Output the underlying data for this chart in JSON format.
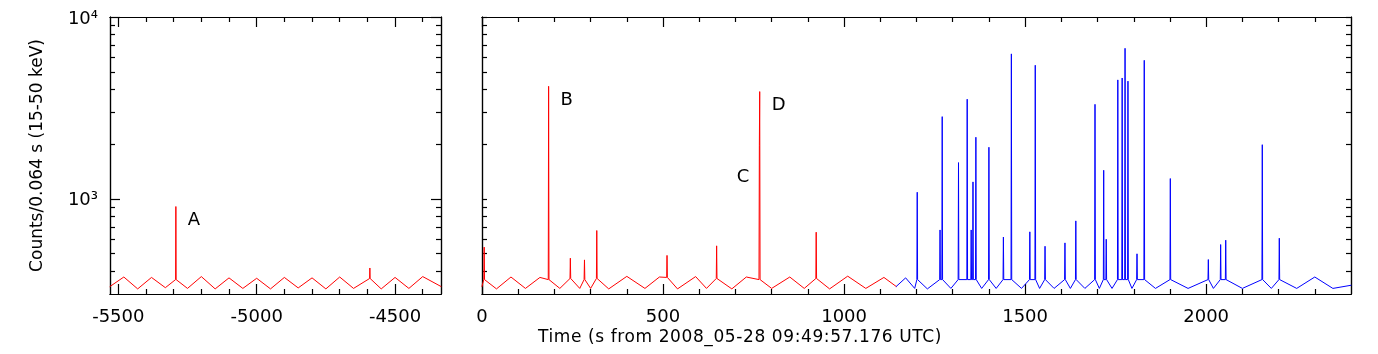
{
  "chart_data": [
    {
      "type": "line",
      "ylabel": "Counts/0.064 s (15-50 keV)",
      "log": true,
      "marker": "none",
      "xlim": [
        -5530,
        -4334
      ],
      "xticks": [
        -5500,
        {
          "value": -5400,
          "label": null
        },
        {
          "value": -5300,
          "label": null
        },
        {
          "value": -5200,
          "label": null
        },
        {
          "value": -5100,
          "label": null
        },
        -5000,
        {
          "value": -4900,
          "label": null
        },
        {
          "value": -4800,
          "label": null
        },
        {
          "value": -4700,
          "label": null
        },
        {
          "value": -4600,
          "label": null
        },
        -4500,
        {
          "value": -4400,
          "label": null
        }
      ],
      "ylim": [
        300,
        10000
      ],
      "yticks": [
        {
          "value": 400,
          "label": null
        },
        {
          "value": 500,
          "label": null
        },
        {
          "value": 600,
          "label": null
        },
        {
          "value": 700,
          "label": null
        },
        {
          "value": 800,
          "label": null
        },
        {
          "value": 900,
          "label": null
        },
        {
          "value": 1000,
          "label": "10³"
        },
        {
          "value": 2000,
          "label": null
        },
        {
          "value": 3000,
          "label": null
        },
        {
          "value": 4000,
          "label": null
        },
        {
          "value": 5000,
          "label": null
        },
        {
          "value": 6000,
          "label": null
        },
        {
          "value": 7000,
          "label": null
        },
        {
          "value": 8000,
          "label": null
        },
        {
          "value": 9000,
          "label": null
        },
        {
          "value": 10000,
          "label": "10⁴"
        }
      ],
      "annotations": [
        {
          "text": "A",
          "x": -5292,
          "y": 908
        }
      ],
      "series": [
        {
          "color": "#ff0000",
          "x": [
            -5530,
            -5480,
            -5430,
            -5380,
            -5330,
            -5293,
            -5292,
            -5291,
            -5250,
            -5200,
            -5150,
            -5100,
            -5050,
            -5000,
            -4950,
            -4900,
            -4850,
            -4800,
            -4750,
            -4700,
            -4650,
            -4592,
            -4591,
            -4590,
            -4550,
            -4500,
            -4450,
            -4400,
            -4334
          ],
          "values": [
            330,
            372,
            320,
            370,
            325,
            360,
            908,
            360,
            322,
            374,
            320,
            368,
            322,
            366,
            320,
            370,
            324,
            368,
            320,
            372,
            322,
            365,
            417,
            365,
            320,
            370,
            322,
            374,
            330
          ]
        }
      ]
    },
    {
      "type": "line",
      "xlabel": "Time (s from 2008_05-28 09:49:57.176 UTC)",
      "log": true,
      "marker": "none",
      "tick_labels": "x",
      "xlim": [
        0,
        2400
      ],
      "xticks": [
        0,
        {
          "value": 100,
          "label": null
        },
        {
          "value": 200,
          "label": null
        },
        {
          "value": 300,
          "label": null
        },
        {
          "value": 400,
          "label": null
        },
        500,
        {
          "value": 600,
          "label": null
        },
        {
          "value": 700,
          "label": null
        },
        {
          "value": 800,
          "label": null
        },
        {
          "value": 900,
          "label": null
        },
        1000,
        {
          "value": 1100,
          "label": null
        },
        {
          "value": 1200,
          "label": null
        },
        {
          "value": 1300,
          "label": null
        },
        {
          "value": 1400,
          "label": null
        },
        1500,
        {
          "value": 1600,
          "label": null
        },
        {
          "value": 1700,
          "label": null
        },
        {
          "value": 1800,
          "label": null
        },
        {
          "value": 1900,
          "label": null
        },
        2000,
        {
          "value": 2100,
          "label": null
        },
        {
          "value": 2200,
          "label": null
        },
        {
          "value": 2300,
          "label": null
        }
      ],
      "ylim": [
        300,
        10000
      ],
      "yticks": [
        {
          "value": 400,
          "label": null
        },
        {
          "value": 500,
          "label": null
        },
        {
          "value": 600,
          "label": null
        },
        {
          "value": 700,
          "label": null
        },
        {
          "value": 800,
          "label": null
        },
        {
          "value": 900,
          "label": null
        },
        {
          "value": 1000,
          "label": null
        },
        {
          "value": 2000,
          "label": null
        },
        {
          "value": 3000,
          "label": null
        },
        {
          "value": 4000,
          "label": null
        },
        {
          "value": 5000,
          "label": null
        },
        {
          "value": 6000,
          "label": null
        },
        {
          "value": 7000,
          "label": null
        },
        {
          "value": 8000,
          "label": null
        },
        {
          "value": 9000,
          "label": null
        },
        {
          "value": 10000,
          "label": null
        }
      ],
      "annotations": [
        {
          "text": "B",
          "x": 184,
          "y": 4160
        },
        {
          "text": "C",
          "x": 766,
          "y": 1960
        },
        {
          "text": "D",
          "x": 767,
          "y": 3890
        }
      ],
      "series": [
        {
          "color": "#ff0000",
          "x": [
            0,
            5,
            6,
            7,
            40,
            80,
            120,
            160,
            183,
            184,
            185,
            215,
            243,
            244,
            245,
            270,
            282,
            283,
            284,
            300,
            316,
            317,
            318,
            350,
            400,
            450,
            490,
            510,
            511,
            512,
            540,
            590,
            620,
            647,
            648,
            649,
            690,
            730,
            765,
            766,
            767,
            768,
            800,
            850,
            890,
            922,
            923,
            924,
            960,
            1010,
            1060,
            1110,
            1144
          ],
          "values": [
            330,
            360,
            543,
            360,
            320,
            372,
            322,
            370,
            360,
            4160,
            360,
            322,
            365,
            472,
            365,
            322,
            360,
            462,
            360,
            322,
            365,
            670,
            365,
            320,
            375,
            322,
            372,
            370,
            489,
            370,
            320,
            374,
            322,
            365,
            552,
            365,
            320,
            372,
            360,
            1960,
            3890,
            360,
            322,
            372,
            322,
            365,
            656,
            365,
            320,
            376,
            322,
            370,
            330
          ]
        },
        {
          "color": "#0000ff",
          "x": [
            1144,
            1170,
            1195,
            1201,
            1202,
            1203,
            1230,
            1264,
            1265,
            1266,
            1270,
            1271,
            1272,
            1295,
            1315,
            1316,
            1317,
            1339,
            1340,
            1341,
            1350,
            1351,
            1352,
            1355,
            1356,
            1357,
            1363,
            1364,
            1365,
            1380,
            1399,
            1400,
            1401,
            1420,
            1439,
            1440,
            1441,
            1461,
            1462,
            1463,
            1490,
            1512,
            1513,
            1514,
            1527,
            1528,
            1529,
            1540,
            1554,
            1555,
            1556,
            1580,
            1609,
            1610,
            1611,
            1625,
            1639,
            1640,
            1641,
            1665,
            1692,
            1693,
            1694,
            1705,
            1716,
            1717,
            1718,
            1723,
            1724,
            1725,
            1740,
            1755,
            1756,
            1757,
            1767,
            1768,
            1769,
            1775,
            1776,
            1777,
            1783,
            1784,
            1785,
            1795,
            1808,
            1809,
            1810,
            1828,
            1829,
            1830,
            1860,
            1900,
            1901,
            1902,
            1950,
            2005,
            2006,
            2007,
            2020,
            2039,
            2040,
            2041,
            2053,
            2054,
            2055,
            2100,
            2154,
            2155,
            2156,
            2180,
            2201,
            2202,
            2203,
            2250,
            2300,
            2350,
            2400
          ],
          "values": [
            330,
            368,
            322,
            360,
            1088,
            360,
            320,
            360,
            675,
            360,
            360,
            2833,
            360,
            322,
            360,
            1583,
            360,
            360,
            3533,
            360,
            360,
            675,
            360,
            360,
            1240,
            360,
            360,
            2183,
            360,
            322,
            360,
            1923,
            360,
            322,
            360,
            617,
            360,
            360,
            6270,
            360,
            322,
            360,
            659,
            360,
            360,
            5430,
            360,
            322,
            360,
            549,
            360,
            322,
            360,
            573,
            360,
            322,
            360,
            757,
            360,
            322,
            360,
            3311,
            360,
            322,
            360,
            1437,
            360,
            360,
            600,
            360,
            322,
            360,
            4510,
            360,
            360,
            4620,
            360,
            360,
            6730,
            360,
            360,
            4440,
            360,
            322,
            360,
            499,
            360,
            360,
            5780,
            360,
            322,
            360,
            1294,
            360,
            322,
            360,
            464,
            360,
            322,
            360,
            561,
            360,
            360,
            593,
            360,
            322,
            360,
            1986,
            360,
            322,
            360,
            608,
            360,
            322,
            372,
            322,
            335
          ]
        }
      ]
    }
  ]
}
